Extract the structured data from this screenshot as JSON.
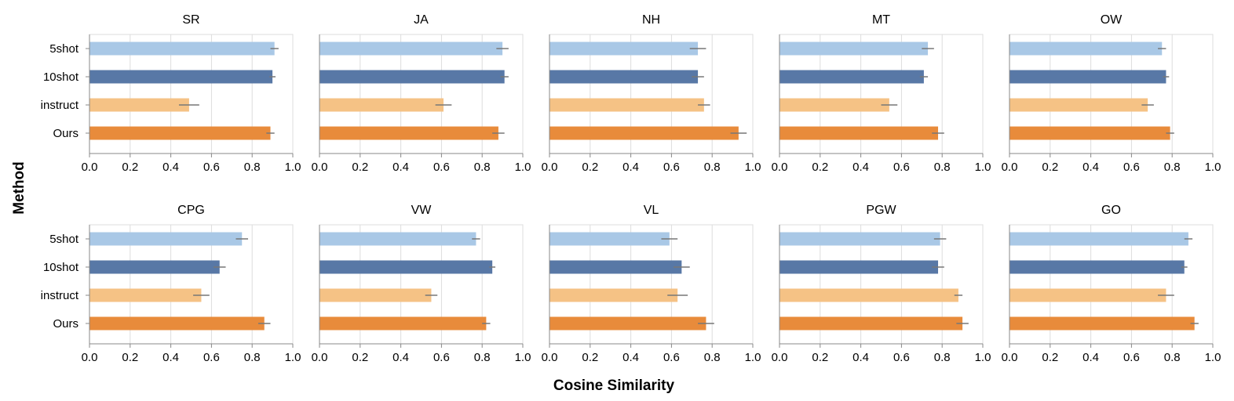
{
  "chart_data": {
    "type": "bar",
    "orientation": "horizontal",
    "xlabel": "Cosine Similarity",
    "ylabel": "Method",
    "categories": [
      "5shot",
      "10shot",
      "instruct",
      "Ours"
    ],
    "colors": {
      "5shot": "#a9c8e6",
      "10shot": "#5878a6",
      "instruct": "#f5c285",
      "Ours": "#e88b3b"
    },
    "error_bar_color": "#777777",
    "grid_color": "#dddddd",
    "xlim": [
      0,
      1.0
    ],
    "xticks": [
      "0.0",
      "0.2",
      "0.4",
      "0.6",
      "0.8",
      "1.0"
    ],
    "grid": true,
    "facets": [
      {
        "title": "SR",
        "values": [
          0.91,
          0.9,
          0.49,
          0.89
        ],
        "errors": [
          0.02,
          0.015,
          0.05,
          0.02
        ]
      },
      {
        "title": "JA",
        "values": [
          0.9,
          0.91,
          0.61,
          0.88
        ],
        "errors": [
          0.03,
          0.02,
          0.04,
          0.03
        ]
      },
      {
        "title": "NH",
        "values": [
          0.73,
          0.73,
          0.76,
          0.93
        ],
        "errors": [
          0.04,
          0.03,
          0.03,
          0.04
        ]
      },
      {
        "title": "MT",
        "values": [
          0.73,
          0.71,
          0.54,
          0.78
        ],
        "errors": [
          0.03,
          0.02,
          0.04,
          0.03
        ]
      },
      {
        "title": "OW",
        "values": [
          0.75,
          0.77,
          0.68,
          0.79
        ],
        "errors": [
          0.02,
          0.015,
          0.03,
          0.02
        ]
      },
      {
        "title": "CPG",
        "values": [
          0.75,
          0.64,
          0.55,
          0.86
        ],
        "errors": [
          0.03,
          0.03,
          0.04,
          0.03
        ]
      },
      {
        "title": "VW",
        "values": [
          0.77,
          0.85,
          0.55,
          0.82
        ],
        "errors": [
          0.02,
          0.015,
          0.03,
          0.02
        ]
      },
      {
        "title": "VL",
        "values": [
          0.59,
          0.65,
          0.63,
          0.77
        ],
        "errors": [
          0.04,
          0.04,
          0.05,
          0.04
        ]
      },
      {
        "title": "PGW",
        "values": [
          0.79,
          0.78,
          0.88,
          0.9
        ],
        "errors": [
          0.03,
          0.03,
          0.02,
          0.03
        ]
      },
      {
        "title": "GO",
        "values": [
          0.88,
          0.86,
          0.77,
          0.91
        ],
        "errors": [
          0.02,
          0.015,
          0.04,
          0.02
        ]
      }
    ]
  }
}
